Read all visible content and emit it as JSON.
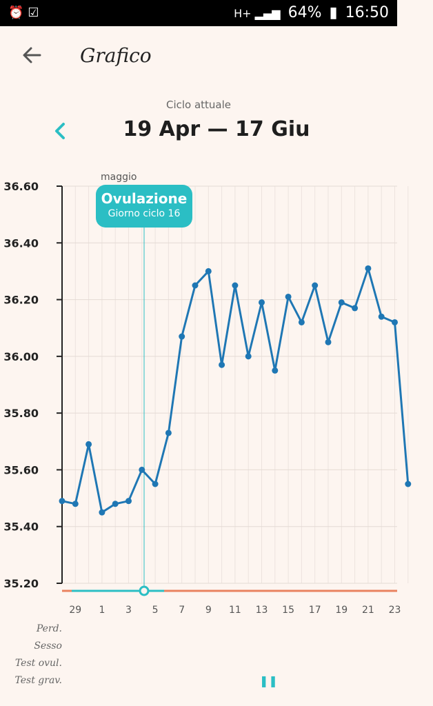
{
  "status_bar": {
    "battery": "64%",
    "time": "16:50"
  },
  "header": {
    "title": "Grafico"
  },
  "cycle": {
    "label": "Ciclo attuale",
    "range": "19 Apr — 17 Giu"
  },
  "month_label": "maggio",
  "ovulation": {
    "title": "Ovulazione",
    "subtitle": "Giorno ciclo 16"
  },
  "row_labels": [
    "Perd.",
    "Sesso",
    "Test ovul.",
    "Test grav."
  ],
  "pause_icon": "pause-icon",
  "colors": {
    "line": "#1f77b4",
    "accent": "#2bbec4",
    "fertile_bar": "#e9825f"
  },
  "chart_data": {
    "type": "line",
    "ylim": [
      35.2,
      36.6
    ],
    "y_ticks": [
      "35.20",
      "35.40",
      "35.60",
      "35.80",
      "36.00",
      "36.20",
      "36.40",
      "36.60"
    ],
    "x_tick_labels": [
      "29",
      "1",
      "3",
      "5",
      "7",
      "9",
      "11",
      "13",
      "15",
      "17",
      "19",
      "21",
      "23"
    ],
    "series": [
      {
        "values": [
          35.49,
          35.48,
          35.69,
          35.45,
          35.48,
          35.49,
          35.6,
          35.55,
          35.73,
          36.07,
          36.25,
          36.3,
          35.97,
          36.25,
          36.0,
          36.19,
          35.95,
          36.21,
          36.12,
          36.25,
          36.05,
          36.19,
          36.17,
          36.31,
          36.14,
          36.12,
          35.55
        ]
      }
    ],
    "grid": true
  }
}
